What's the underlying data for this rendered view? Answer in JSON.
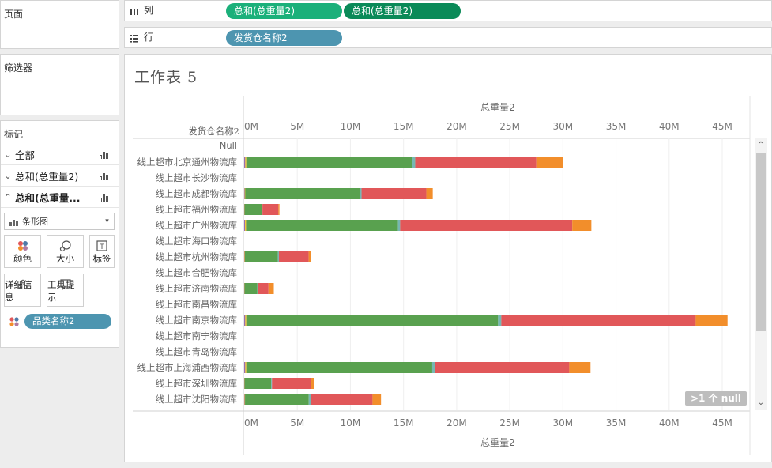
{
  "left_panel": {
    "pages_title": "页面",
    "filters_title": "筛选器",
    "marks_title": "标记",
    "marks_rows": [
      {
        "label": "全部",
        "chevron": "chevron-down-icon"
      },
      {
        "label": "总和(总重量2)",
        "chevron": "chevron-down-icon"
      },
      {
        "label": "总和(总重量...",
        "chevron": "chevron-up-icon"
      }
    ],
    "mark_type": "条形图",
    "buttons": {
      "color": "颜色",
      "size": "大小",
      "label": "标签",
      "detail": "详细信息",
      "tooltip": "工具提示"
    },
    "color_pill": "品类名称2"
  },
  "shelves": {
    "columns_label": "列",
    "rows_label": "行",
    "column_pills": [
      "总和(总重量2)",
      "总和(总重量2)"
    ],
    "row_pill": "发货仓名称2",
    "colors": {
      "col_pill_1": "#1bb07a",
      "col_pill_2": "#0a8a58",
      "row_pill": "#4d95b0"
    }
  },
  "sheet": {
    "title": "工作表 5",
    "row_header": "发货仓名称2",
    "null_badge": ">1 个 null"
  },
  "chart_data": {
    "type": "bar",
    "orientation": "horizontal",
    "stacked": true,
    "xlabel": "总重量2",
    "xlim": [
      0,
      47000000
    ],
    "ticks": [
      "0M",
      "5M",
      "10M",
      "15M",
      "20M",
      "25M",
      "30M",
      "35M",
      "40M",
      "45M"
    ],
    "tick_values": [
      0,
      5000000,
      10000000,
      15000000,
      20000000,
      25000000,
      30000000,
      35000000,
      40000000,
      45000000
    ],
    "categories": [
      "Null",
      "线上超市北京通州物流库",
      "线上超市长沙物流库",
      "线上超市成都物流库",
      "线上超市福州物流库",
      "线上超市广州物流库",
      "线上超市海口物流库",
      "线上超市杭州物流库",
      "线上超市合肥物流库",
      "线上超市济南物流库",
      "线上超市南昌物流库",
      "线上超市南京物流库",
      "线上超市南宁物流库",
      "线上超市青岛物流库",
      "线上超市上海浦西物流库",
      "线上超市深圳物流库",
      "线上超市沈阳物流库"
    ],
    "series": [
      {
        "color": "#9a6fb0",
        "values": [
          0,
          100000,
          0,
          50000,
          20000,
          80000,
          0,
          30000,
          0,
          20000,
          0,
          100000,
          0,
          0,
          100000,
          20000,
          40000
        ]
      },
      {
        "color": "#f1c232",
        "values": [
          0,
          100000,
          0,
          50000,
          20000,
          100000,
          0,
          40000,
          0,
          20000,
          0,
          100000,
          0,
          0,
          100000,
          20000,
          40000
        ]
      },
      {
        "color": "#59a14f",
        "values": [
          0,
          15600000,
          0,
          10800000,
          1600000,
          14300000,
          0,
          3100000,
          0,
          1200000,
          0,
          23700000,
          0,
          0,
          17500000,
          2500000,
          6000000
        ]
      },
      {
        "color": "#76b7b2",
        "values": [
          0,
          300000,
          0,
          150000,
          80000,
          200000,
          0,
          100000,
          0,
          50000,
          0,
          300000,
          0,
          0,
          300000,
          80000,
          200000
        ]
      },
      {
        "color": "#e15759",
        "values": [
          0,
          11400000,
          0,
          6100000,
          1500000,
          16200000,
          0,
          2800000,
          0,
          1000000,
          0,
          18300000,
          0,
          0,
          12600000,
          3700000,
          5800000
        ]
      },
      {
        "color": "#f28e2b",
        "values": [
          0,
          2500000,
          0,
          600000,
          100000,
          1800000,
          0,
          200000,
          0,
          500000,
          0,
          3000000,
          0,
          0,
          2000000,
          300000,
          800000
        ]
      }
    ]
  }
}
